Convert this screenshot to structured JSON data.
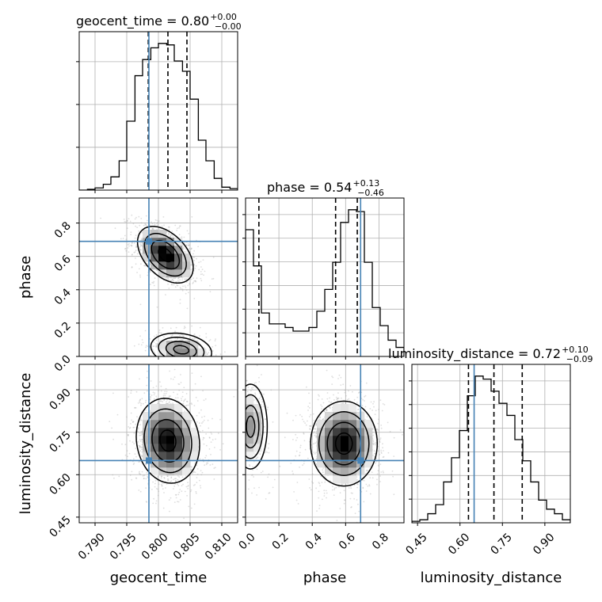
{
  "chart_data": {
    "type": "corner",
    "parameters": [
      "geocent_time",
      "phase",
      "luminosity_distance"
    ],
    "titles": [
      {
        "param": "geocent_time",
        "text": "geocent_time = 0.80",
        "upper": "+0.00",
        "lower": "−0.00"
      },
      {
        "param": "phase",
        "text": "phase = 0.54",
        "upper": "+0.13",
        "lower": "−0.46"
      },
      {
        "param": "luminosity_distance",
        "text": "luminosity_distance = 0.72",
        "upper": "+0.10",
        "lower": "−0.09"
      }
    ],
    "axis_labels": {
      "x": [
        "geocent_time",
        "phase",
        "luminosity_distance"
      ],
      "y": [
        "phase",
        "luminosity_distance"
      ]
    },
    "ranges": {
      "geocent_time": [
        0.7875,
        0.8125
      ],
      "phase": [
        0.0,
        0.95
      ],
      "luminosity_distance": [
        0.43,
        0.99
      ]
    },
    "ticks": {
      "geocent_time": [
        "0.790",
        "0.795",
        "0.800",
        "0.805",
        "0.810"
      ],
      "phase_x": [
        "0.0",
        "0.2",
        "0.4",
        "0.6",
        "0.8"
      ],
      "phase_y": [
        "0.0",
        "0.2",
        "0.4",
        "0.6",
        "0.8"
      ],
      "luminosity_distance": [
        "0.45",
        "0.60",
        "0.75",
        "0.90"
      ]
    },
    "truths": {
      "geocent_time": 0.7985,
      "phase": 0.69,
      "luminosity_distance": 0.65
    },
    "quantiles": {
      "geocent_time": [
        0.7984,
        0.8015,
        0.8045
      ],
      "phase": [
        0.08,
        0.54,
        0.67
      ],
      "luminosity_distance": [
        0.63,
        0.72,
        0.82
      ]
    },
    "histograms": {
      "geocent_time": {
        "edges": [
          0.7875,
          0.7888,
          0.79,
          0.7913,
          0.7925,
          0.7938,
          0.795,
          0.7963,
          0.7975,
          0.7988,
          0.8,
          0.8013,
          0.8025,
          0.8038,
          0.805,
          0.8063,
          0.8075,
          0.8088,
          0.81,
          0.8113,
          0.8125
        ],
        "counts": [
          0,
          0.5,
          1.5,
          4,
          9,
          20,
          47,
          78,
          89,
          97,
          100,
          99,
          88,
          81,
          62,
          34,
          20,
          8,
          2,
          1
        ]
      },
      "phase": {
        "edges": [
          0.0,
          0.0475,
          0.095,
          0.1425,
          0.19,
          0.2375,
          0.285,
          0.3325,
          0.38,
          0.4275,
          0.475,
          0.5225,
          0.57,
          0.6175,
          0.665,
          0.7125,
          0.76,
          0.8075,
          0.855,
          0.9025,
          0.95
        ],
        "counts": [
          70,
          50,
          24,
          18,
          18,
          16,
          14,
          14,
          16,
          25,
          37,
          52,
          74,
          81,
          80,
          52,
          27,
          17,
          9,
          5
        ]
      },
      "luminosity_distance": {
        "edges": [
          0.43,
          0.458,
          0.486,
          0.514,
          0.542,
          0.57,
          0.598,
          0.626,
          0.654,
          0.682,
          0.71,
          0.738,
          0.766,
          0.794,
          0.822,
          0.85,
          0.878,
          0.906,
          0.934,
          0.962,
          0.99
        ],
        "counts": [
          1,
          2,
          6,
          12,
          27,
          43,
          61,
          84,
          97,
          95,
          87,
          79,
          71,
          55,
          41,
          27,
          15,
          9,
          6,
          2
        ]
      }
    },
    "density_2d": [
      {
        "x": "geocent_time",
        "y": "phase",
        "modes": [
          {
            "cx": 0.8011,
            "cy": 0.61,
            "sx": 0.0022,
            "sy": 0.085,
            "rho": -0.45,
            "weight": 0.72
          },
          {
            "cx": 0.8036,
            "cy": 0.04,
            "sx": 0.0024,
            "sy": 0.05,
            "rho": -0.2,
            "weight": 0.28
          }
        ]
      },
      {
        "x": "geocent_time",
        "y": "luminosity_distance",
        "modes": [
          {
            "cx": 0.8015,
            "cy": 0.72,
            "sx": 0.0025,
            "sy": 0.075,
            "rho": -0.1,
            "weight": 1.0
          }
        ]
      },
      {
        "x": "phase",
        "y": "luminosity_distance",
        "modes": [
          {
            "cx": 0.59,
            "cy": 0.71,
            "sx": 0.1,
            "sy": 0.075,
            "rho": 0.0,
            "weight": 0.8
          },
          {
            "cx": 0.03,
            "cy": 0.77,
            "sx": 0.05,
            "sy": 0.075,
            "rho": 0.0,
            "weight": 0.2
          }
        ]
      }
    ],
    "colors": {
      "truth": "#4682b4",
      "hist": "#000000",
      "grid": "#b0b0b0",
      "samples": "#a0a0a0"
    },
    "grid": true
  }
}
